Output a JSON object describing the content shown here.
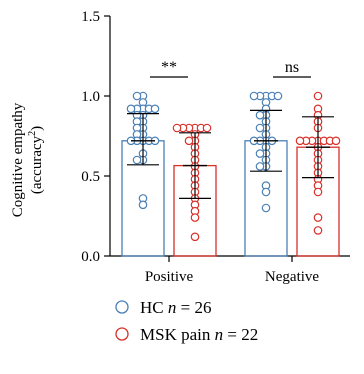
{
  "chart_data": {
    "type": "bar",
    "title": "",
    "ylabel_line1": "Cognitive empathy",
    "ylabel_line2_base": "(accuracy",
    "ylabel_line2_sup": "2",
    "ylabel_line2_end": ")",
    "ylim": [
      0,
      1.5
    ],
    "yticks": [
      0.0,
      0.5,
      1.0,
      1.5
    ],
    "ytick_labels": [
      "0.0",
      "0.5",
      "1.0",
      "1.5"
    ],
    "categories": [
      "Positive",
      "Negative"
    ],
    "grid": false,
    "series": [
      {
        "name": "HC",
        "n_text": "n",
        "n_value": "= 26",
        "color": "#4a7fb5",
        "means": [
          0.72,
          0.72
        ],
        "sd_upper": [
          0.89,
          0.91
        ],
        "sd_lower": [
          0.57,
          0.53
        ],
        "points": [
          [
            1.0,
            1.0,
            0.96,
            0.92,
            0.92,
            0.92,
            0.92,
            0.92,
            0.88,
            0.88,
            0.84,
            0.84,
            0.8,
            0.8,
            0.76,
            0.76,
            0.72,
            0.72,
            0.72,
            0.72,
            0.72,
            0.64,
            0.6,
            0.6,
            0.36,
            0.32
          ],
          [
            1.0,
            1.0,
            1.0,
            1.0,
            1.0,
            0.96,
            0.92,
            0.88,
            0.88,
            0.84,
            0.8,
            0.8,
            0.76,
            0.72,
            0.72,
            0.72,
            0.72,
            0.68,
            0.64,
            0.64,
            0.6,
            0.56,
            0.56,
            0.44,
            0.4,
            0.3
          ]
        ]
      },
      {
        "name": "MSK pain",
        "n_text": "n",
        "n_value": "= 22",
        "color": "#d9302a",
        "means": [
          0.565,
          0.68
        ],
        "sd_upper": [
          0.77,
          0.87
        ],
        "sd_lower": [
          0.36,
          0.49
        ],
        "points": [
          [
            0.8,
            0.8,
            0.8,
            0.8,
            0.8,
            0.8,
            0.76,
            0.72,
            0.72,
            0.68,
            0.64,
            0.6,
            0.56,
            0.52,
            0.48,
            0.44,
            0.4,
            0.36,
            0.32,
            0.28,
            0.24,
            0.12
          ],
          [
            1.0,
            0.92,
            0.88,
            0.84,
            0.8,
            0.72,
            0.72,
            0.72,
            0.72,
            0.72,
            0.72,
            0.72,
            0.68,
            0.64,
            0.6,
            0.56,
            0.52,
            0.48,
            0.44,
            0.4,
            0.24,
            0.16
          ]
        ]
      }
    ],
    "significance": [
      "**",
      "ns"
    ],
    "legend_position": "bottom-left"
  }
}
